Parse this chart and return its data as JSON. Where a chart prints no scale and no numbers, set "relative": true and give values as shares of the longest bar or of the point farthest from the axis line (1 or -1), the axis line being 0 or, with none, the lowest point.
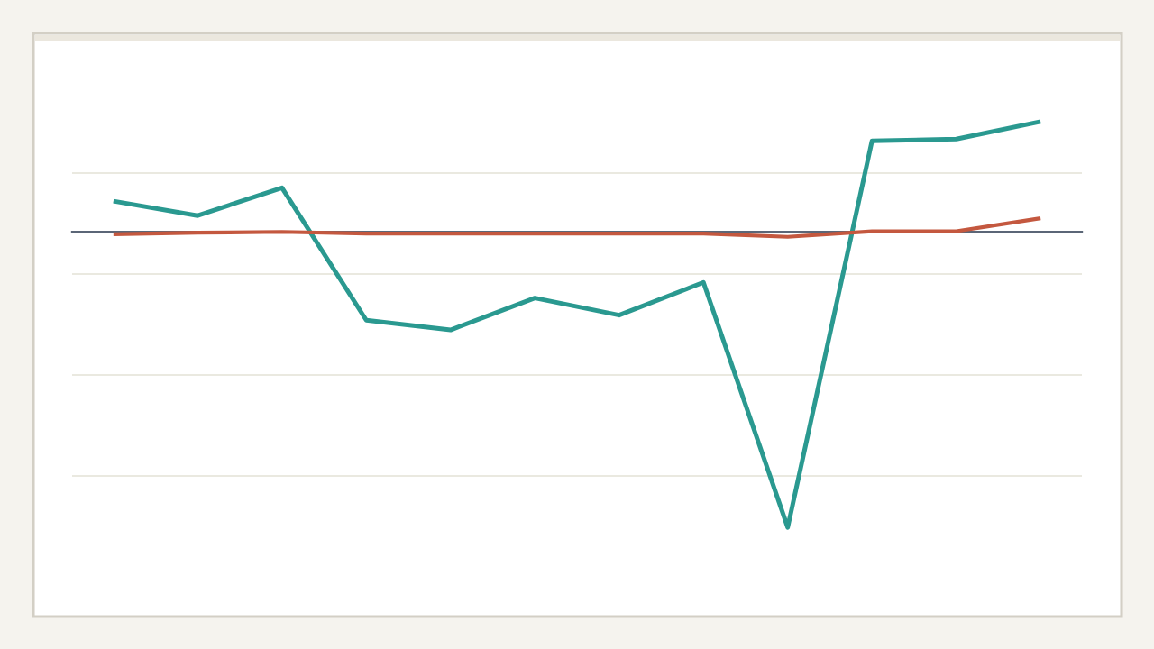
{
  "chart_data": {
    "type": "line",
    "relative": true,
    "categories": [
      null,
      null,
      null,
      null,
      null,
      null,
      null,
      null,
      null,
      null,
      null,
      null
    ],
    "series": [
      {
        "color": "#2a9990",
        "values": [
          0.104,
          0.055,
          0.149,
          -0.299,
          -0.332,
          -0.224,
          -0.282,
          -0.171,
          -1,
          0.308,
          0.314,
          0.373
        ]
      },
      {
        "color": "#c4583f",
        "values": [
          -0.008,
          -0.003,
          0,
          -0.006,
          -0.006,
          -0.006,
          -0.006,
          -0.006,
          -0.017,
          0.002,
          0.002,
          0.046
        ]
      }
    ],
    "grid": "y"
  }
}
